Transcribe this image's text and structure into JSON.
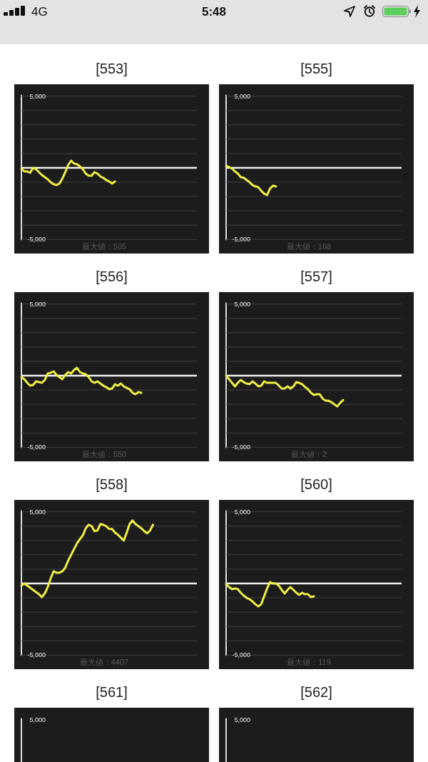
{
  "chart_data": [
    {
      "type": "line",
      "title": "[553]",
      "categories": [
        null,
        null,
        null,
        null,
        null,
        null,
        null,
        null,
        null,
        null,
        null,
        null,
        null,
        null,
        null,
        null,
        null,
        null,
        null,
        null,
        null,
        null,
        null,
        null,
        null,
        null,
        null,
        null,
        null,
        null,
        null,
        null,
        null,
        null,
        null,
        null,
        null,
        null,
        null,
        null,
        null,
        null,
        null,
        null,
        null,
        null,
        null,
        null,
        null,
        null,
        null,
        null,
        null,
        null,
        null,
        null,
        null,
        null,
        null,
        null,
        null
      ],
      "ylim": [
        -5000,
        5000
      ],
      "yticks": [
        {
          "value": 5000,
          "label": "5,000"
        },
        {
          "value": 4000,
          "label": null
        },
        {
          "value": 3000,
          "label": null
        },
        {
          "value": 2000,
          "label": null
        },
        {
          "value": 1000,
          "label": null
        },
        {
          "value": -1000,
          "label": null
        },
        {
          "value": -2000,
          "label": null
        },
        {
          "value": -3000,
          "label": null
        },
        {
          "value": -4000,
          "label": null
        },
        {
          "value": -5000,
          "label": "-5,000"
        }
      ],
      "grid": "y",
      "ref_lines": [
        {
          "axis": "y",
          "value": 0,
          "color": "#f0f0f0"
        }
      ],
      "series": [
        {
          "color": "#eeee44",
          "values": [
            -50,
            -250,
            -250,
            -350,
            0,
            -100,
            -300,
            -500,
            -650,
            -800,
            -1000,
            -1150,
            -1200,
            -1100,
            -750,
            -300,
            200,
            500,
            300,
            250,
            100,
            -100,
            -400,
            -550,
            -550,
            -300,
            -400,
            -600,
            -700,
            -850,
            -950,
            -1100,
            -950,
            null,
            null,
            null,
            null,
            null,
            null,
            null,
            null,
            null,
            null,
            null,
            null,
            null,
            null,
            null,
            null,
            null,
            null,
            null,
            null,
            null,
            null,
            null,
            null,
            null,
            null,
            null,
            null
          ]
        }
      ],
      "annotations": [
        "最大値：505",
        "4G",
        "5:48"
      ]
    },
    {
      "type": "line",
      "title": "[555]",
      "categories": [
        null,
        null,
        null,
        null,
        null,
        null,
        null,
        null,
        null,
        null,
        null,
        null,
        null,
        null,
        null,
        null,
        null,
        null,
        null,
        null,
        null,
        null,
        null,
        null,
        null,
        null,
        null,
        null,
        null,
        null,
        null,
        null,
        null,
        null,
        null,
        null,
        null,
        null,
        null,
        null,
        null,
        null,
        null,
        null,
        null,
        null,
        null,
        null,
        null,
        null,
        null,
        null,
        null,
        null,
        null,
        null,
        null,
        null,
        null,
        null,
        null
      ],
      "ylim": [
        -5000,
        5000
      ],
      "yticks": [
        {
          "value": 5000,
          "label": "5,000"
        },
        {
          "value": 4000,
          "label": null
        },
        {
          "value": 3000,
          "label": null
        },
        {
          "value": 2000,
          "label": null
        },
        {
          "value": 1000,
          "label": null
        },
        {
          "value": -1000,
          "label": null
        },
        {
          "value": -2000,
          "label": null
        },
        {
          "value": -3000,
          "label": null
        },
        {
          "value": -4000,
          "label": null
        },
        {
          "value": -5000,
          "label": "-5,000"
        }
      ],
      "grid": "y",
      "ref_lines": [
        {
          "axis": "y",
          "value": 0,
          "color": "#f0f0f0"
        }
      ],
      "series": [
        {
          "color": "#eeee44",
          "values": [
            150,
            50,
            -50,
            -250,
            -400,
            -650,
            -700,
            -850,
            -1000,
            -1200,
            -1300,
            -1350,
            -1600,
            -1800,
            -1900,
            -1450,
            -1250,
            -1300,
            null,
            null,
            null,
            null,
            null,
            null,
            null,
            null,
            null,
            null,
            null,
            null,
            null,
            null,
            null,
            null,
            null,
            null,
            null,
            null,
            null,
            null,
            null,
            null,
            null,
            null,
            null,
            null,
            null,
            null,
            null,
            null,
            null,
            null,
            null,
            null,
            null,
            null,
            null,
            null,
            null,
            null,
            null
          ]
        }
      ],
      "annotations": [
        "最大値：168"
      ]
    },
    {
      "type": "line",
      "title": "[556]",
      "categories": [
        null,
        null,
        null,
        null,
        null,
        null,
        null,
        null,
        null,
        null,
        null,
        null,
        null,
        null,
        null,
        null,
        null,
        null,
        null,
        null,
        null,
        null,
        null,
        null,
        null,
        null,
        null,
        null,
        null,
        null,
        null,
        null,
        null,
        null,
        null,
        null,
        null,
        null,
        null,
        null,
        null,
        null,
        null,
        null,
        null,
        null,
        null,
        null,
        null,
        null,
        null,
        null,
        null,
        null,
        null,
        null,
        null,
        null,
        null,
        null,
        null
      ],
      "ylim": [
        -5000,
        5000
      ],
      "yticks": [
        {
          "value": 5000,
          "label": "5,000"
        },
        {
          "value": 4000,
          "label": null
        },
        {
          "value": 3000,
          "label": null
        },
        {
          "value": 2000,
          "label": null
        },
        {
          "value": 1000,
          "label": null
        },
        {
          "value": -1000,
          "label": null
        },
        {
          "value": -2000,
          "label": null
        },
        {
          "value": -3000,
          "label": null
        },
        {
          "value": -4000,
          "label": null
        },
        {
          "value": -5000,
          "label": "-5,000"
        }
      ],
      "grid": "y",
      "ref_lines": [
        {
          "axis": "y",
          "value": 0,
          "color": "#f0f0f0"
        }
      ],
      "series": [
        {
          "color": "#eeee44",
          "values": [
            -100,
            -250,
            -500,
            -700,
            -650,
            -400,
            -450,
            -500,
            -300,
            150,
            200,
            300,
            50,
            -100,
            -250,
            50,
            250,
            150,
            400,
            550,
            250,
            150,
            100,
            -100,
            -400,
            -500,
            -400,
            -550,
            -700,
            -800,
            -950,
            -900,
            -600,
            -700,
            -550,
            -750,
            -850,
            -950,
            -1200,
            -1300,
            -1150,
            -1200,
            null,
            null,
            null,
            null,
            null,
            null,
            null,
            null,
            null,
            null,
            null,
            null,
            null,
            null,
            null,
            null,
            null,
            null,
            null
          ]
        }
      ],
      "annotations": [
        "最大値：550"
      ]
    },
    {
      "type": "line",
      "title": "[557]",
      "categories": [
        null,
        null,
        null,
        null,
        null,
        null,
        null,
        null,
        null,
        null,
        null,
        null,
        null,
        null,
        null,
        null,
        null,
        null,
        null,
        null,
        null,
        null,
        null,
        null,
        null,
        null,
        null,
        null,
        null,
        null,
        null,
        null,
        null,
        null,
        null,
        null,
        null,
        null,
        null,
        null,
        null,
        null,
        null,
        null,
        null,
        null,
        null,
        null,
        null,
        null,
        null,
        null,
        null,
        null,
        null,
        null,
        null,
        null,
        null,
        null,
        null
      ],
      "ylim": [
        -5000,
        5000
      ],
      "yticks": [
        {
          "value": 5000,
          "label": "5,000"
        },
        {
          "value": 4000,
          "label": null
        },
        {
          "value": 3000,
          "label": null
        },
        {
          "value": 2000,
          "label": null
        },
        {
          "value": 1000,
          "label": null
        },
        {
          "value": -1000,
          "label": null
        },
        {
          "value": -2000,
          "label": null
        },
        {
          "value": -3000,
          "label": null
        },
        {
          "value": -4000,
          "label": null
        },
        {
          "value": -5000,
          "label": "-5,000"
        }
      ],
      "grid": "y",
      "ref_lines": [
        {
          "axis": "y",
          "value": 0,
          "color": "#f0f0f0"
        }
      ],
      "series": [
        {
          "color": "#eeee44",
          "values": [
            0,
            -250,
            -500,
            -750,
            -500,
            -300,
            -450,
            -550,
            -600,
            -400,
            -550,
            -750,
            -700,
            -400,
            -500,
            -500,
            -500,
            -500,
            -700,
            -900,
            -900,
            -750,
            -900,
            -750,
            -450,
            -500,
            -600,
            -800,
            -950,
            -1200,
            -1350,
            -1300,
            -1300,
            -1600,
            -1750,
            -1750,
            -1850,
            -2000,
            -2150,
            -1900,
            -1700,
            null,
            null,
            null,
            null,
            null,
            null,
            null,
            null,
            null,
            null,
            null,
            null,
            null,
            null,
            null,
            null,
            null,
            null,
            null,
            null
          ]
        }
      ],
      "annotations": [
        "最大値：2"
      ]
    },
    {
      "type": "line",
      "title": "[558]",
      "categories": [
        null,
        null,
        null,
        null,
        null,
        null,
        null,
        null,
        null,
        null,
        null,
        null,
        null,
        null,
        null,
        null,
        null,
        null,
        null,
        null,
        null,
        null,
        null,
        null,
        null,
        null,
        null,
        null,
        null,
        null,
        null,
        null,
        null,
        null,
        null,
        null,
        null,
        null,
        null,
        null,
        null,
        null,
        null,
        null,
        null,
        null,
        null,
        null,
        null,
        null,
        null,
        null,
        null,
        null,
        null,
        null,
        null,
        null,
        null,
        null,
        null
      ],
      "ylim": [
        -5000,
        5000
      ],
      "yticks": [
        {
          "value": 5000,
          "label": "5,000"
        },
        {
          "value": 4000,
          "label": null
        },
        {
          "value": 3000,
          "label": null
        },
        {
          "value": 2000,
          "label": null
        },
        {
          "value": 1000,
          "label": null
        },
        {
          "value": -1000,
          "label": null
        },
        {
          "value": -2000,
          "label": null
        },
        {
          "value": -3000,
          "label": null
        },
        {
          "value": -4000,
          "label": null
        },
        {
          "value": -5000,
          "label": "-5,000"
        }
      ],
      "grid": "y",
      "ref_lines": [
        {
          "axis": "y",
          "value": 0,
          "color": "#f0f0f0"
        }
      ],
      "series": [
        {
          "color": "#eeee44",
          "values": [
            -150,
            0,
            -150,
            -300,
            -450,
            -600,
            -750,
            -950,
            -700,
            -250,
            350,
            850,
            750,
            750,
            850,
            1100,
            1600,
            2000,
            2400,
            2800,
            3100,
            3350,
            3850,
            4100,
            4000,
            3650,
            3700,
            4150,
            4100,
            4000,
            3800,
            3800,
            3550,
            3400,
            3200,
            3000,
            3550,
            4150,
            4400,
            4150,
            4000,
            3850,
            3650,
            3500,
            3700,
            4100,
            null,
            null,
            null,
            null,
            null,
            null,
            null,
            null,
            null,
            null,
            null,
            null,
            null,
            null,
            null
          ]
        }
      ],
      "annotations": [
        "最大値：4407"
      ]
    },
    {
      "type": "line",
      "title": "[560]",
      "categories": [
        null,
        null,
        null,
        null,
        null,
        null,
        null,
        null,
        null,
        null,
        null,
        null,
        null,
        null,
        null,
        null,
        null,
        null,
        null,
        null,
        null,
        null,
        null,
        null,
        null,
        null,
        null,
        null,
        null,
        null,
        null,
        null,
        null,
        null,
        null,
        null,
        null,
        null,
        null,
        null,
        null,
        null,
        null,
        null,
        null,
        null,
        null,
        null,
        null,
        null,
        null,
        null,
        null,
        null,
        null,
        null,
        null,
        null,
        null,
        null,
        null
      ],
      "ylim": [
        -5000,
        5000
      ],
      "yticks": [
        {
          "value": 5000,
          "label": "5,000"
        },
        {
          "value": 4000,
          "label": null
        },
        {
          "value": 3000,
          "label": null
        },
        {
          "value": 2000,
          "label": null
        },
        {
          "value": 1000,
          "label": null
        },
        {
          "value": -1000,
          "label": null
        },
        {
          "value": -2000,
          "label": null
        },
        {
          "value": -3000,
          "label": null
        },
        {
          "value": -4000,
          "label": null
        },
        {
          "value": -5000,
          "label": "-5,000"
        }
      ],
      "grid": "y",
      "ref_lines": [
        {
          "axis": "y",
          "value": 0,
          "color": "#f0f0f0"
        }
      ],
      "series": [
        {
          "color": "#eeee44",
          "values": [
            -50,
            -250,
            -400,
            -350,
            -400,
            -650,
            -850,
            -1000,
            -1100,
            -1250,
            -1450,
            -1600,
            -1450,
            -900,
            -350,
            100,
            0,
            0,
            -150,
            -450,
            -700,
            -450,
            -250,
            -450,
            -650,
            -800,
            -650,
            -750,
            -750,
            -950,
            -900,
            null,
            null,
            null,
            null,
            null,
            null,
            null,
            null,
            null,
            null,
            null,
            null,
            null,
            null,
            null,
            null,
            null,
            null,
            null,
            null,
            null,
            null,
            null,
            null,
            null,
            null,
            null,
            null,
            null,
            null
          ]
        }
      ],
      "annotations": [
        "最大値：119"
      ]
    },
    {
      "type": "other",
      "title": "[561]",
      "annotations": [
        "5,000"
      ]
    },
    {
      "type": "other",
      "title": "[562]",
      "annotations": [
        "5,000"
      ]
    }
  ]
}
